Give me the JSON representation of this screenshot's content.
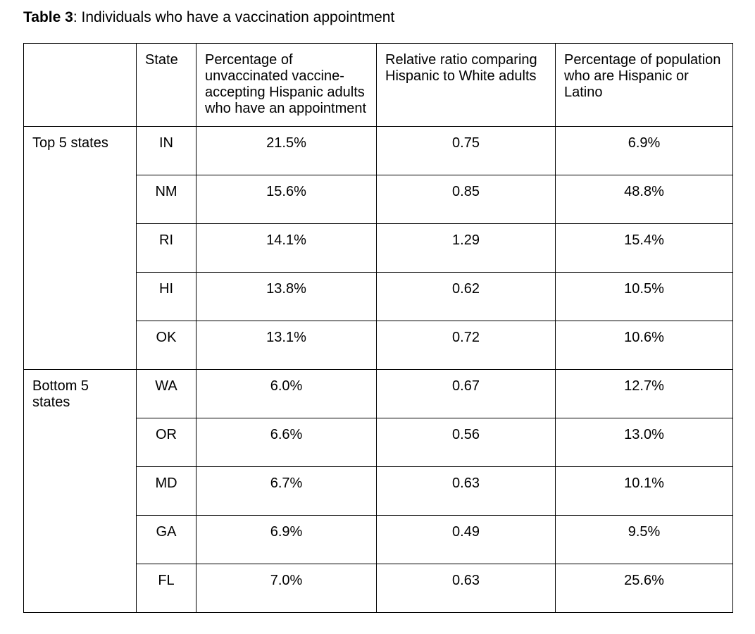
{
  "caption": {
    "label": "Table 3",
    "text": ": Individuals who have a vaccination appointment"
  },
  "table": {
    "columns": [
      "",
      "State",
      "Percentage of unvaccinated vaccine-accepting Hispanic adults who have an appointment",
      "Relative ratio comparing Hispanic to White adults",
      "Percentage of population who are Hispanic or Latino"
    ],
    "groups": [
      {
        "label": "Top 5 states",
        "rows": [
          {
            "state": "IN",
            "pct_appointment": "21.5%",
            "relative_ratio": "0.75",
            "pct_population": "6.9%"
          },
          {
            "state": "NM",
            "pct_appointment": "15.6%",
            "relative_ratio": "0.85",
            "pct_population": "48.8%"
          },
          {
            "state": "RI",
            "pct_appointment": "14.1%",
            "relative_ratio": "1.29",
            "pct_population": "15.4%"
          },
          {
            "state": "HI",
            "pct_appointment": "13.8%",
            "relative_ratio": "0.62",
            "pct_population": "10.5%"
          },
          {
            "state": "OK",
            "pct_appointment": "13.1%",
            "relative_ratio": "0.72",
            "pct_population": "10.6%"
          }
        ]
      },
      {
        "label": "Bottom 5 states",
        "rows": [
          {
            "state": "WA",
            "pct_appointment": "6.0%",
            "relative_ratio": "0.67",
            "pct_population": "12.7%"
          },
          {
            "state": "OR",
            "pct_appointment": "6.6%",
            "relative_ratio": "0.56",
            "pct_population": "13.0%"
          },
          {
            "state": "MD",
            "pct_appointment": "6.7%",
            "relative_ratio": "0.63",
            "pct_population": "10.1%"
          },
          {
            "state": "GA",
            "pct_appointment": "6.9%",
            "relative_ratio": "0.49",
            "pct_population": "9.5%"
          },
          {
            "state": "FL",
            "pct_appointment": "7.0%",
            "relative_ratio": "0.63",
            "pct_population": "25.6%"
          }
        ]
      }
    ]
  },
  "colors": {
    "background": "#ffffff",
    "text": "#000000",
    "border": "#000000"
  },
  "chart_data": {
    "type": "table",
    "title": "Table 3: Individuals who have a vaccination appointment",
    "columns": [
      "",
      "State",
      "Percentage of unvaccinated vaccine-accepting Hispanic adults who have an appointment",
      "Relative ratio comparing Hispanic to White adults",
      "Percentage of population who are Hispanic or Latino"
    ],
    "rows": [
      [
        "Top 5 states",
        "IN",
        "21.5%",
        "0.75",
        "6.9%"
      ],
      [
        "",
        "NM",
        "15.6%",
        "0.85",
        "48.8%"
      ],
      [
        "",
        "RI",
        "14.1%",
        "1.29",
        "15.4%"
      ],
      [
        "",
        "HI",
        "13.8%",
        "0.62",
        "10.5%"
      ],
      [
        "",
        "OK",
        "13.1%",
        "0.72",
        "10.6%"
      ],
      [
        "Bottom 5 states",
        "WA",
        "6.0%",
        "0.67",
        "12.7%"
      ],
      [
        "",
        "OR",
        "6.6%",
        "0.56",
        "13.0%"
      ],
      [
        "",
        "MD",
        "6.7%",
        "0.63",
        "10.1%"
      ],
      [
        "",
        "GA",
        "6.9%",
        "0.49",
        "9.5%"
      ],
      [
        "",
        "FL",
        "7.0%",
        "0.63",
        "25.6%"
      ]
    ]
  }
}
